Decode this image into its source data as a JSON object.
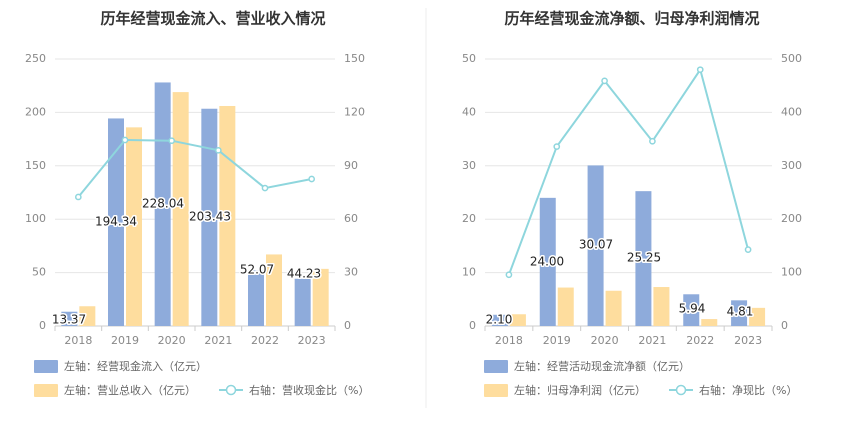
{
  "chart_data": [
    {
      "type": "bar",
      "title": "历年经营现金流入、营业收入情况",
      "categories": [
        "2018",
        "2019",
        "2020",
        "2021",
        "2022",
        "2023"
      ],
      "left_axis": {
        "min": 0,
        "max": 250,
        "ticks": [
          "0",
          "50",
          "100",
          "150",
          "200",
          "250"
        ]
      },
      "right_axis": {
        "min": 0,
        "max": 150,
        "ticks": [
          "0",
          "30",
          "60",
          "90",
          "120",
          "150"
        ]
      },
      "grid": true,
      "legend_position": "bottom",
      "series": [
        {
          "name": "左轴：经营现金流入（亿元）",
          "kind": "bar",
          "axis": "left",
          "color": "#8eabdb",
          "values": [
            13.37,
            194.34,
            228.04,
            203.43,
            52.07,
            44.23
          ],
          "labels": [
            "13.37",
            "194.34",
            "228.04",
            "203.43",
            "52.07",
            "44.23"
          ]
        },
        {
          "name": "左轴：营业总收入（亿元）",
          "kind": "bar",
          "axis": "left",
          "color": "#fedd9e",
          "values": [
            18.5,
            186,
            219,
            206,
            67,
            53.5
          ]
        },
        {
          "name": "右轴：营收现金比（%）",
          "kind": "line",
          "axis": "right",
          "color": "#8ed6dd",
          "values": [
            72.5,
            104.5,
            104.1,
            98.7,
            77.5,
            82.6
          ]
        }
      ]
    },
    {
      "type": "bar",
      "title": "历年经营现金流净额、归母净利润情况",
      "categories": [
        "2018",
        "2019",
        "2020",
        "2021",
        "2022",
        "2023"
      ],
      "left_axis": {
        "min": 0,
        "max": 50,
        "ticks": [
          "0",
          "10",
          "20",
          "30",
          "40",
          "50"
        ]
      },
      "right_axis": {
        "min": 0,
        "max": 500,
        "ticks": [
          "0",
          "100",
          "200",
          "300",
          "400",
          "500"
        ]
      },
      "grid": true,
      "legend_position": "bottom",
      "series": [
        {
          "name": "左轴：经营活动现金流净额（亿元）",
          "kind": "bar",
          "axis": "left",
          "color": "#8eabdb",
          "values": [
            2.1,
            24.0,
            30.07,
            25.25,
            5.94,
            4.81
          ],
          "labels": [
            "2.10",
            "24.00",
            "30.07",
            "25.25",
            "5.94",
            "4.81"
          ]
        },
        {
          "name": "左轴：归母净利润（亿元）",
          "kind": "bar",
          "axis": "left",
          "color": "#fedd9e",
          "values": [
            2.2,
            7.2,
            6.6,
            7.3,
            1.3,
            3.4
          ]
        },
        {
          "name": "右轴：净现比（%）",
          "kind": "line",
          "axis": "right",
          "color": "#8ed6dd",
          "values": [
            96,
            336,
            459,
            346,
            480,
            143
          ]
        }
      ]
    }
  ]
}
